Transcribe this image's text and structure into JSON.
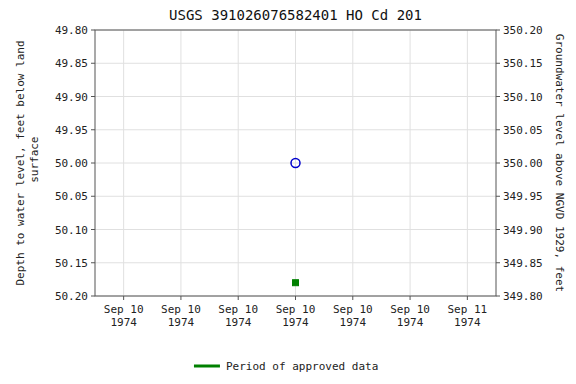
{
  "chart_data": {
    "type": "scatter",
    "title": "USGS 391026076582401 HO Cd 201",
    "ylabel": "Depth to water level, feet below land\n surface",
    "y2label": "Groundwater level above NGVD 1929, feet",
    "categories": [
      "Sep 10\n1974",
      "Sep 10\n1974",
      "Sep 10\n1974",
      "Sep 10\n1974",
      "Sep 10\n1974",
      "Sep 10\n1974",
      "Sep 11\n1974"
    ],
    "series": [
      {
        "color": "#0000cc",
        "marker": "circle",
        "values": [
          null,
          null,
          null,
          50.0,
          null,
          null,
          null
        ]
      },
      {
        "name": "Period of approved data",
        "color": "#008000",
        "marker": "square",
        "values": [
          null,
          null,
          null,
          50.18,
          null,
          null,
          null
        ]
      }
    ],
    "ylim": [
      50.2,
      49.8
    ],
    "yticks": [
      {
        "value": 49.8,
        "label": "49.80"
      },
      {
        "value": 49.85,
        "label": "49.85"
      },
      {
        "value": 49.9,
        "label": "49.90"
      },
      {
        "value": 49.95,
        "label": "49.95"
      },
      {
        "value": 50.0,
        "label": "50.00"
      },
      {
        "value": 50.05,
        "label": "50.05"
      },
      {
        "value": 50.1,
        "label": "50.10"
      },
      {
        "value": 50.15,
        "label": "50.15"
      },
      {
        "value": 50.2,
        "label": "50.20"
      }
    ],
    "y2lim": [
      349.8,
      350.2
    ],
    "y2ticks": [
      {
        "value": 350.2,
        "label": "350.20"
      },
      {
        "value": 350.15,
        "label": "350.15"
      },
      {
        "value": 350.1,
        "label": "350.10"
      },
      {
        "value": 350.05,
        "label": "350.05"
      },
      {
        "value": 350.0,
        "label": "350.00"
      },
      {
        "value": 349.95,
        "label": "349.95"
      },
      {
        "value": 349.9,
        "label": "349.90"
      },
      {
        "value": 349.85,
        "label": "349.85"
      },
      {
        "value": 349.8,
        "label": "349.80"
      }
    ],
    "grid": true,
    "legend": "bottom"
  }
}
